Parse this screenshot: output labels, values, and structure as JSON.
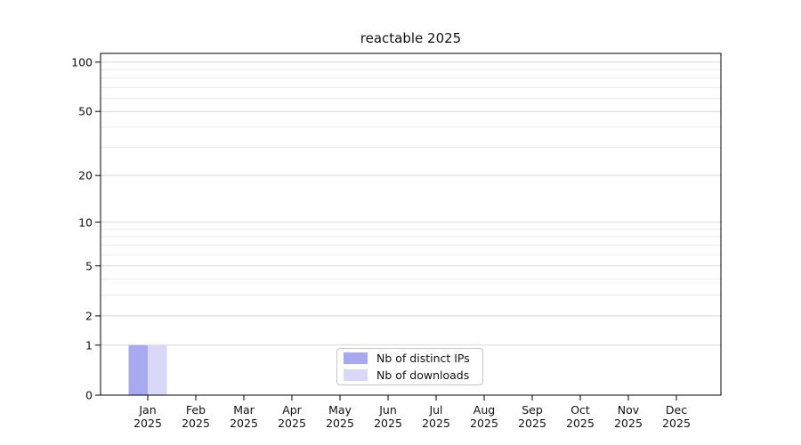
{
  "figure": {
    "title": "reactable 2025"
  },
  "chart_data": {
    "type": "bar",
    "title": "reactable 2025",
    "categories": [
      "Jan 2025",
      "Feb 2025",
      "Mar 2025",
      "Apr 2025",
      "May 2025",
      "Jun 2025",
      "Jul 2025",
      "Aug 2025",
      "Sep 2025",
      "Oct 2025",
      "Nov 2025",
      "Dec 2025"
    ],
    "series": [
      {
        "name": "Nb of distinct IPs",
        "color": "#a9a9ef",
        "values": [
          1,
          0,
          0,
          0,
          0,
          0,
          0,
          0,
          0,
          0,
          0,
          0
        ]
      },
      {
        "name": "Nb of downloads",
        "color": "#d9d9f7",
        "values": [
          1,
          0,
          0,
          0,
          0,
          0,
          0,
          0,
          0,
          0,
          0,
          0
        ]
      }
    ],
    "xlabel": "",
    "ylabel": "",
    "y_axis": {
      "scale": "log2(1+x)",
      "major_ticks": [
        0,
        1,
        2,
        5,
        10,
        20,
        50,
        100
      ],
      "minor_ticks": [
        3,
        4,
        6,
        7,
        8,
        9,
        30,
        40,
        60,
        70,
        80,
        90
      ],
      "ylim": [
        0,
        113
      ]
    },
    "grid": "horizontal major + minor, on",
    "legend": {
      "position": "inside bottom-center",
      "entries": [
        "Nb of distinct IPs",
        "Nb of downloads"
      ]
    },
    "colors": {
      "bar_distinct_ips": "#a9a9ef",
      "bar_downloads": "#d9d9f7",
      "major_grid": "#d8d8d8",
      "minor_grid": "#ebebeb",
      "axis": "#000000",
      "text": "#111111",
      "background": "#ffffff"
    }
  }
}
